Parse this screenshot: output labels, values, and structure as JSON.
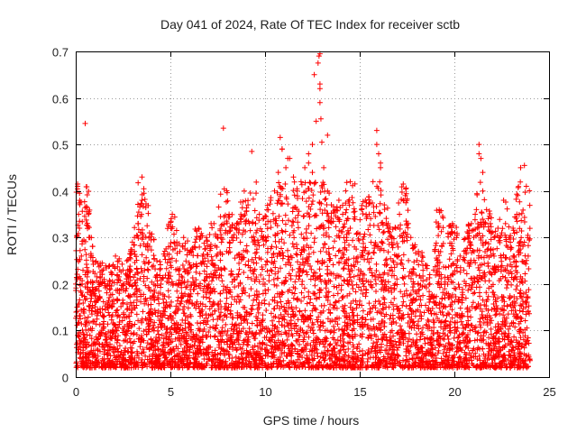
{
  "chart_data": {
    "type": "scatter",
    "title": "Day 041 of 2024, Rate Of TEC Index for receiver sctb",
    "xlabel": "GPS time / hours",
    "ylabel": "ROTI / TECUs",
    "xlim": [
      0,
      25
    ],
    "ylim": [
      0,
      0.7
    ],
    "xticks": [
      0,
      5,
      10,
      15,
      20,
      25
    ],
    "yticks": [
      0,
      0.1,
      0.2,
      0.3,
      0.4,
      0.5,
      0.6,
      0.7
    ],
    "grid": true,
    "marker": "plus",
    "color": "#ff0000",
    "series": [
      {
        "x": [
          0.0,
          0.05,
          0.1,
          0.15,
          0.2,
          0.3,
          0.5,
          0.7,
          0.9,
          1.1,
          1.3,
          1.5,
          1.7,
          1.9,
          2.1,
          2.3,
          2.5,
          2.7,
          2.9,
          3.1,
          3.3,
          3.5,
          3.7,
          3.9,
          4.1,
          4.3,
          4.5,
          4.7,
          4.9,
          5.1,
          5.3,
          5.5,
          5.7,
          5.9,
          6.1,
          6.3,
          6.5,
          6.7,
          6.9,
          7.1,
          7.3,
          7.5,
          7.7,
          7.9,
          8.1,
          8.3,
          8.5,
          8.7,
          8.9,
          9.1,
          9.3,
          9.5,
          9.7,
          9.9,
          10.1,
          10.3,
          10.5,
          10.7,
          10.9,
          11.1,
          11.3,
          11.5,
          11.7,
          11.9,
          12.1,
          12.3,
          12.5,
          12.7,
          12.9,
          13.1,
          13.3,
          13.5,
          13.7,
          13.9,
          14.1,
          14.3,
          14.5,
          14.7,
          14.9,
          15.1,
          15.3,
          15.5,
          15.7,
          15.9,
          16.1,
          16.3,
          16.5,
          16.7,
          16.9,
          17.1,
          17.3,
          17.5,
          17.7,
          17.9,
          18.1,
          18.3,
          18.5,
          18.7,
          18.9,
          19.1,
          19.3,
          19.5,
          19.7,
          19.9,
          20.1,
          20.3,
          20.5,
          20.7,
          20.9,
          21.1,
          21.3,
          21.5,
          21.7,
          21.9,
          22.1,
          22.3,
          22.5,
          22.7,
          22.9,
          23.1,
          23.3,
          23.5,
          23.7,
          23.9,
          0.1,
          0.2,
          0.5,
          3.5,
          3.6,
          7.8,
          9.3,
          10.8,
          10.9,
          12.6,
          12.8,
          12.85,
          12.9,
          12.9,
          12.9,
          12.95,
          13.0,
          15.9,
          16.0,
          16.1,
          21.3,
          21.4,
          21.5,
          23.7,
          23.8,
          11.2,
          12.3,
          12.5,
          13.3,
          14.5,
          17.3,
          19.2,
          19.9,
          22.6
        ],
        "y": [
          0.2,
          0.3,
          0.41,
          0.35,
          0.32,
          0.26,
          0.22,
          0.3,
          0.25,
          0.19,
          0.24,
          0.21,
          0.2,
          0.22,
          0.26,
          0.18,
          0.23,
          0.25,
          0.27,
          0.3,
          0.33,
          0.38,
          0.28,
          0.31,
          0.24,
          0.22,
          0.2,
          0.26,
          0.28,
          0.35,
          0.25,
          0.27,
          0.3,
          0.23,
          0.27,
          0.29,
          0.32,
          0.26,
          0.3,
          0.28,
          0.33,
          0.3,
          0.29,
          0.31,
          0.35,
          0.3,
          0.33,
          0.34,
          0.4,
          0.37,
          0.3,
          0.33,
          0.35,
          0.34,
          0.36,
          0.38,
          0.4,
          0.44,
          0.49,
          0.45,
          0.47,
          0.43,
          0.4,
          0.42,
          0.45,
          0.48,
          0.5,
          0.55,
          0.62,
          0.45,
          0.4,
          0.37,
          0.36,
          0.38,
          0.35,
          0.3,
          0.32,
          0.34,
          0.31,
          0.36,
          0.38,
          0.35,
          0.42,
          0.5,
          0.45,
          0.37,
          0.33,
          0.3,
          0.32,
          0.35,
          0.38,
          0.33,
          0.3,
          0.28,
          0.27,
          0.26,
          0.24,
          0.22,
          0.23,
          0.24,
          0.22,
          0.2,
          0.21,
          0.22,
          0.24,
          0.26,
          0.23,
          0.3,
          0.33,
          0.35,
          0.48,
          0.4,
          0.36,
          0.33,
          0.3,
          0.32,
          0.31,
          0.33,
          0.3,
          0.32,
          0.35,
          0.45,
          0.29,
          0.26,
          0.415,
          0.395,
          0.545,
          0.43,
          0.395,
          0.535,
          0.485,
          0.515,
          0.49,
          0.65,
          0.675,
          0.69,
          0.695,
          0.63,
          0.59,
          0.555,
          0.505,
          0.53,
          0.48,
          0.46,
          0.5,
          0.47,
          0.44,
          0.455,
          0.41,
          0.47,
          0.46,
          0.44,
          0.52,
          0.42,
          0.415,
          0.36,
          0.33,
          0.38
        ]
      }
    ]
  }
}
